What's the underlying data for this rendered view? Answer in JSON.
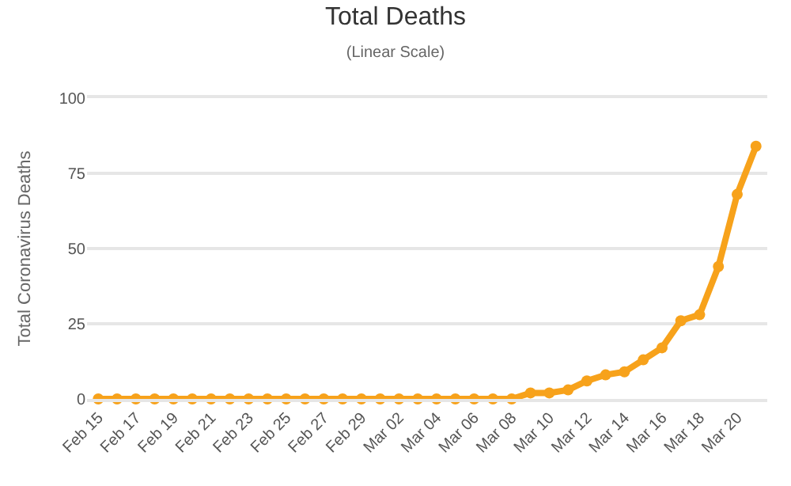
{
  "chart_data": {
    "type": "line",
    "title": "Total Deaths",
    "subtitle": "(Linear Scale)",
    "ylabel": "Total Coronavirus Deaths",
    "categories": [
      "Feb 15",
      null,
      "Feb 17",
      null,
      "Feb 19",
      null,
      "Feb 21",
      null,
      "Feb 23",
      null,
      "Feb 25",
      null,
      "Feb 27",
      null,
      "Feb 29",
      null,
      "Mar 02",
      null,
      "Mar 04",
      null,
      "Mar 06",
      null,
      "Mar 08",
      null,
      "Mar 10",
      null,
      "Mar 12",
      null,
      "Mar 14",
      null,
      "Mar 16",
      null,
      "Mar 18",
      null,
      "Mar 20",
      null
    ],
    "series": [
      {
        "color": "#f7a21b",
        "values": [
          0,
          0,
          0,
          0,
          0,
          0,
          0,
          0,
          0,
          0,
          0,
          0,
          0,
          0,
          0,
          0,
          0,
          0,
          0,
          0,
          0,
          0,
          0,
          2,
          2,
          3,
          6,
          8,
          9,
          13,
          17,
          26,
          28,
          44,
          68,
          84
        ]
      }
    ],
    "ylim": [
      0,
      100
    ],
    "yticks": [
      0,
      25,
      50,
      75,
      100
    ],
    "grid": "y",
    "marker": "circle",
    "line_style": "solid",
    "legend": false
  }
}
